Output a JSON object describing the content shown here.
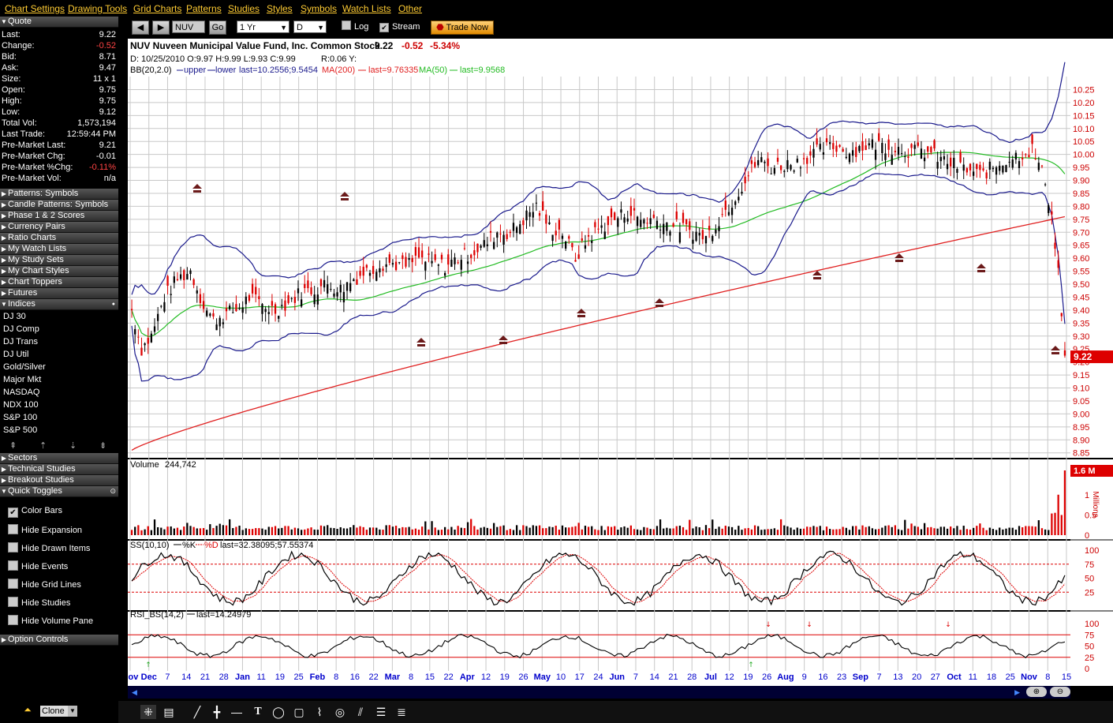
{
  "menu": [
    "Chart Settings",
    "Drawing Tools",
    "Grid Charts",
    "Patterns",
    "Studies",
    "Styles",
    "Symbols",
    "Watch Lists",
    "Other"
  ],
  "quote": {
    "header": "Quote",
    "rows": [
      {
        "k": "Last:",
        "v": "9.22"
      },
      {
        "k": "Change:",
        "v": "-0.52",
        "neg": true
      },
      {
        "k": "Bid:",
        "v": "8.71"
      },
      {
        "k": "Ask:",
        "v": "9.47"
      },
      {
        "k": "Size:",
        "v": "11 x 1"
      },
      {
        "k": "Open:",
        "v": "9.75"
      },
      {
        "k": "High:",
        "v": "9.75"
      },
      {
        "k": "Low:",
        "v": "9.12"
      },
      {
        "k": "Total Vol:",
        "v": "1,573,194"
      },
      {
        "k": "Last Trade:",
        "v": "12:59:44 PM"
      },
      {
        "k": "Pre-Market Last:",
        "v": "9.21"
      },
      {
        "k": "Pre-Market Chg:",
        "v": "-0.01"
      },
      {
        "k": "Pre-Market %Chg:",
        "v": "-0.11%",
        "neg": true
      },
      {
        "k": "Pre-Market Vol:",
        "v": "n/a"
      }
    ]
  },
  "sections_top": [
    "Patterns: Symbols",
    "Candle Patterns: Symbols",
    "Phase 1 & 2 Scores",
    "Currency Pairs",
    "Ratio Charts",
    "My Watch Lists",
    "My Study Sets",
    "My Chart Styles",
    "Chart Toppers",
    "Futures"
  ],
  "indices_header": "Indices",
  "indices": [
    "DJ 30",
    "DJ Comp",
    "DJ Trans",
    "DJ Util",
    "Gold/Silver",
    "Major Mkt",
    "NASDAQ",
    "NDX 100",
    "S&P 100",
    "S&P 500"
  ],
  "sections_mid": [
    "Sectors",
    "Technical Studies",
    "Breakout Studies"
  ],
  "quick_toggles_header": "Quick Toggles",
  "toggles": [
    {
      "label": "Color Bars",
      "checked": true
    },
    {
      "label": "Hide Expansion",
      "checked": false
    },
    {
      "label": "Hide Drawn Items",
      "checked": false
    },
    {
      "label": "Hide Events",
      "checked": false
    },
    {
      "label": "Hide Grid Lines",
      "checked": false
    },
    {
      "label": "Hide Studies",
      "checked": false
    },
    {
      "label": "Hide Volume Pane",
      "checked": false
    }
  ],
  "option_controls": "Option Controls",
  "toolbar": {
    "symbol": "NUV",
    "go": "Go",
    "range": "1 Yr",
    "interval": "D",
    "log": "Log",
    "stream": "Stream",
    "trade_now": "Trade Now"
  },
  "chart_header": {
    "title": "NUV Nuveen Municipal Value Fund, Inc. Common Stock",
    "last": "9.22",
    "change": "-0.52",
    "pct": "-5.34%",
    "ohlc": "D: 10/25/2010 O:9.97 H:9.99 L:9.93 C:9.99",
    "range": "R:0.06 Y:",
    "bb": "BB(20,2.0)",
    "upper": "upper",
    "lower": "lower",
    "bb_last": "last=10.2556;9.5454",
    "ma200": "MA(200)",
    "ma200_last": "last=9.76335",
    "ma50": "MA(50)",
    "ma50_last": "last=9.9568"
  },
  "colors": {
    "up": "#000000",
    "down": "#dd0000",
    "bb": "#1a1a8c",
    "ma200": "#e02020",
    "ma50": "#22bb22",
    "axis_text": "#cc0000",
    "date_text": "#0000cc"
  },
  "chart_data": [
    {
      "type": "candlestick",
      "title": "NUV Nuveen Municipal Value Fund, Inc. Common Stock",
      "y_ticks": [
        "10.25",
        "10.20",
        "10.15",
        "10.10",
        "10.05",
        "10.00",
        "9.95",
        "9.90",
        "9.85",
        "9.80",
        "9.75",
        "9.70",
        "9.65",
        "9.60",
        "9.55",
        "9.50",
        "9.45",
        "9.40",
        "9.35",
        "9.30",
        "9.25",
        "9.20",
        "9.15",
        "9.10",
        "9.05",
        "9.00",
        "8.95",
        "8.90",
        "8.85"
      ],
      "ylim": [
        8.84,
        10.3
      ],
      "last_label": "9.22",
      "x_ticks": [
        "Nov",
        "Dec",
        "7",
        "14",
        "21",
        "28",
        "Jan",
        "11",
        "19",
        "25",
        "Feb",
        "8",
        "16",
        "22",
        "Mar",
        "8",
        "15",
        "22",
        "Apr",
        "12",
        "19",
        "26",
        "May",
        "10",
        "17",
        "24",
        "Jun",
        "7",
        "14",
        "21",
        "28",
        "Jul",
        "12",
        "19",
        "26",
        "Aug",
        "9",
        "16",
        "23",
        "Sep",
        "7",
        "13",
        "20",
        "27",
        "Oct",
        "11",
        "18",
        "25",
        "Nov",
        "8",
        "15"
      ],
      "close_path": [
        [
          0,
          9.4
        ],
        [
          3,
          9.25
        ],
        [
          6,
          9.3
        ],
        [
          10,
          9.45
        ],
        [
          14,
          9.52
        ],
        [
          18,
          9.55
        ],
        [
          22,
          9.42
        ],
        [
          25,
          9.36
        ],
        [
          28,
          9.38
        ],
        [
          32,
          9.4
        ],
        [
          36,
          9.45
        ],
        [
          40,
          9.42
        ],
        [
          44,
          9.4
        ],
        [
          48,
          9.43
        ],
        [
          52,
          9.47
        ],
        [
          56,
          9.48
        ],
        [
          60,
          9.5
        ],
        [
          64,
          9.48
        ],
        [
          68,
          9.52
        ],
        [
          72,
          9.55
        ],
        [
          76,
          9.58
        ],
        [
          80,
          9.58
        ],
        [
          84,
          9.57
        ],
        [
          88,
          9.6
        ],
        [
          92,
          9.58
        ],
        [
          96,
          9.57
        ],
        [
          100,
          9.6
        ],
        [
          104,
          9.62
        ],
        [
          108,
          9.65
        ],
        [
          112,
          9.7
        ],
        [
          116,
          9.7
        ],
        [
          120,
          9.75
        ],
        [
          124,
          9.8
        ],
        [
          128,
          9.72
        ],
        [
          132,
          9.7
        ],
        [
          136,
          9.6
        ],
        [
          140,
          9.68
        ],
        [
          144,
          9.72
        ],
        [
          148,
          9.75
        ],
        [
          152,
          9.78
        ],
        [
          156,
          9.75
        ],
        [
          160,
          9.75
        ],
        [
          164,
          9.73
        ],
        [
          168,
          9.72
        ],
        [
          172,
          9.7
        ],
        [
          176,
          9.68
        ],
        [
          180,
          9.75
        ],
        [
          184,
          9.82
        ],
        [
          188,
          9.9
        ],
        [
          192,
          9.98
        ],
        [
          196,
          9.95
        ],
        [
          200,
          9.96
        ],
        [
          204,
          9.97
        ],
        [
          208,
          10.0
        ],
        [
          212,
          10.02
        ],
        [
          216,
          10.03
        ],
        [
          220,
          10.01
        ],
        [
          224,
          10.03
        ],
        [
          228,
          10.04
        ],
        [
          232,
          10.03
        ],
        [
          236,
          10.02
        ],
        [
          240,
          10.01
        ],
        [
          244,
          10.01
        ],
        [
          248,
          9.98
        ],
        [
          252,
          9.96
        ],
        [
          256,
          9.94
        ],
        [
          260,
          9.92
        ],
        [
          264,
          9.95
        ],
        [
          268,
          9.98
        ],
        [
          272,
          10.0
        ],
        [
          276,
          10.02
        ],
        [
          280,
          9.9
        ],
        [
          282,
          9.76
        ],
        [
          284,
          9.55
        ],
        [
          286,
          9.22
        ]
      ],
      "ma200_range": [
        8.86,
        9.76
      ],
      "ma50_last": 9.9568,
      "bb_last": [
        10.2556,
        9.5454
      ],
      "event_markers": 11
    },
    {
      "type": "bar",
      "title": "Volume",
      "value_label": "244,742",
      "y_ticks": [
        "1.6 M",
        "1",
        "0.5",
        "0"
      ],
      "unit": "Millions",
      "max": 1.6
    },
    {
      "type": "line",
      "title": "SS(10,10)",
      "series": [
        {
          "name": "%K"
        },
        {
          "name": "%D"
        }
      ],
      "last": "last=32.38095;57.55374",
      "y_ticks": [
        "100",
        "75",
        "50",
        "25"
      ],
      "ylim": [
        0,
        100
      ]
    },
    {
      "type": "line",
      "title": "RSI_BS(14,2)",
      "last": "last=14.24979",
      "y_ticks": [
        "100",
        "75",
        "50",
        "25",
        "0"
      ],
      "ylim": [
        0,
        100
      ]
    }
  ],
  "bottom": {
    "clone": "Clone"
  }
}
